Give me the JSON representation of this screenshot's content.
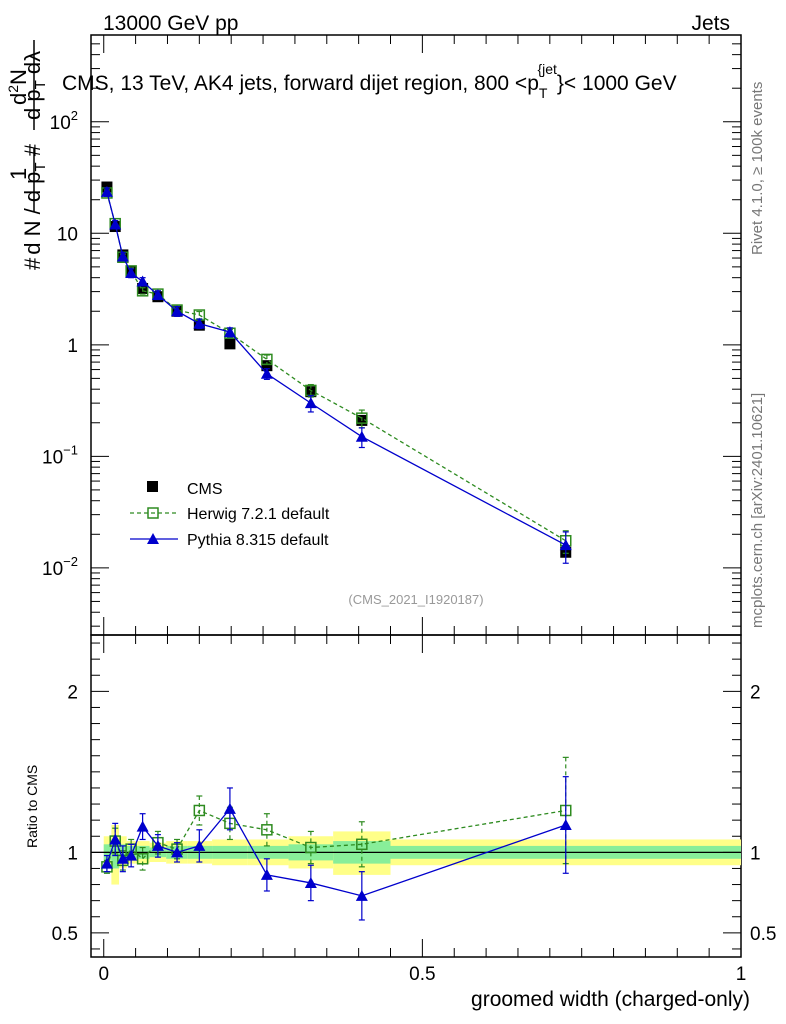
{
  "header": {
    "left": "13000 GeV pp",
    "right": "Jets",
    "title": "CMS, 13 TeV, AK4 jets, forward dijet region, 800 <p",
    "title_sup": "{jet",
    "title_sub": "T",
    "title_end": "}< 1000 GeV"
  },
  "side_labels": {
    "rivet": "Rivet 4.1.0, ≥ 100k events",
    "mcplots": "mcplots.cern.ch [arXiv:2401.10621]"
  },
  "watermark": "(CMS_2021_I1920187)",
  "ratio_ylabel": "Ratio to CMS",
  "xlabel": "groomed width (charged-only)",
  "colors": {
    "cms": "#000000",
    "herwig": "#2e8b20",
    "pythia": "#0000cc",
    "band_outer": "#ffff88",
    "band_inner": "#88ee99"
  },
  "chart_data": [
    {
      "type": "scatter",
      "panel": "main",
      "yscale": "log",
      "xlim": [
        -0.02,
        1.0
      ],
      "ylim": [
        0.0025,
        600
      ],
      "y_ticks": [
        {
          "value": 0.01,
          "base": "10",
          "exp": "−2"
        },
        {
          "value": 0.1,
          "base": "10",
          "exp": "−1"
        },
        {
          "value": 1,
          "base": "1",
          "exp": ""
        },
        {
          "value": 10,
          "base": "10",
          "exp": ""
        },
        {
          "value": 100,
          "base": "10",
          "exp": "2"
        }
      ],
      "x": [
        0.005,
        0.018,
        0.03,
        0.043,
        0.061,
        0.085,
        0.115,
        0.15,
        0.198,
        0.256,
        0.325,
        0.405,
        0.725
      ],
      "series": [
        {
          "name": "CMS",
          "values": [
            26,
            11.5,
            6.4,
            4.5,
            3.2,
            2.7,
            2.0,
            1.5,
            1.02,
            0.65,
            0.38,
            0.21,
            0.0138
          ]
        },
        {
          "name": "Herwig 7.2.1 default",
          "values": [
            23,
            12.2,
            6.1,
            4.6,
            3.05,
            2.85,
            2.05,
            1.85,
            1.27,
            0.74,
            0.39,
            0.22,
            0.0175
          ],
          "errors": [
            1.5,
            0.8,
            0.4,
            0.3,
            0.2,
            0.2,
            0.15,
            0.14,
            0.1,
            0.07,
            0.05,
            0.04,
            0.004
          ]
        },
        {
          "name": "Pythia 8.315 default",
          "values": [
            23.5,
            12.0,
            6.2,
            4.4,
            3.7,
            2.8,
            2.0,
            1.55,
            1.3,
            0.55,
            0.3,
            0.15,
            0.016
          ],
          "errors": [
            2.0,
            1.0,
            0.5,
            0.4,
            0.3,
            0.25,
            0.2,
            0.15,
            0.12,
            0.06,
            0.05,
            0.03,
            0.005
          ]
        }
      ],
      "legend": [
        "CMS",
        "Herwig 7.2.1 default",
        "Pythia 8.315 default"
      ]
    },
    {
      "type": "scatter",
      "panel": "ratio",
      "xlim": [
        -0.02,
        1.0
      ],
      "ylim": [
        0.35,
        2.35
      ],
      "x_ticks": [
        {
          "value": 0,
          "label": "0"
        },
        {
          "value": 0.5,
          "label": "0.5"
        },
        {
          "value": 1,
          "label": "1"
        }
      ],
      "y_ticks": [
        {
          "value": 0.5,
          "label": "0.5"
        },
        {
          "value": 1,
          "label": "1"
        },
        {
          "value": 2,
          "label": "2"
        }
      ],
      "bin_edges": [
        0,
        0.012,
        0.024,
        0.036,
        0.05,
        0.072,
        0.098,
        0.132,
        0.17,
        0.226,
        0.29,
        0.36,
        0.45,
        1.0
      ],
      "band_outer": [
        [
          0.9,
          1.1
        ],
        [
          0.8,
          1.17
        ],
        [
          0.9,
          1.1
        ],
        [
          0.93,
          1.07
        ],
        [
          0.93,
          1.07
        ],
        [
          0.94,
          1.06
        ],
        [
          0.93,
          1.07
        ],
        [
          0.93,
          1.07
        ],
        [
          0.92,
          1.08
        ],
        [
          0.92,
          1.08
        ],
        [
          0.9,
          1.1
        ],
        [
          0.86,
          1.13
        ],
        [
          0.92,
          1.08
        ]
      ],
      "band_inner": [
        [
          0.95,
          1.05
        ],
        [
          0.9,
          1.08
        ],
        [
          0.95,
          1.05
        ],
        [
          0.96,
          1.04
        ],
        [
          0.96,
          1.04
        ],
        [
          0.97,
          1.03
        ],
        [
          0.96,
          1.04
        ],
        [
          0.96,
          1.04
        ],
        [
          0.96,
          1.04
        ],
        [
          0.96,
          1.04
        ],
        [
          0.95,
          1.05
        ],
        [
          0.93,
          1.07
        ],
        [
          0.96,
          1.04
        ]
      ],
      "x": [
        0.005,
        0.018,
        0.03,
        0.043,
        0.061,
        0.085,
        0.115,
        0.15,
        0.198,
        0.256,
        0.325,
        0.405,
        0.725
      ],
      "series": [
        {
          "name": "Herwig 7.2.1 default",
          "values": [
            0.91,
            1.07,
            0.95,
            1.02,
            0.96,
            1.06,
            1.02,
            1.26,
            1.18,
            1.14,
            1.03,
            1.05,
            1.26
          ],
          "errors": [
            0.04,
            0.08,
            0.06,
            0.06,
            0.07,
            0.07,
            0.06,
            0.09,
            0.1,
            0.1,
            0.1,
            0.14,
            0.33
          ]
        },
        {
          "name": "Pythia 8.315 default",
          "values": [
            0.93,
            1.08,
            0.96,
            0.98,
            1.16,
            1.04,
            1.0,
            1.04,
            1.27,
            0.86,
            0.81,
            0.73,
            1.17
          ],
          "errors": [
            0.05,
            0.1,
            0.08,
            0.07,
            0.08,
            0.07,
            0.06,
            0.1,
            0.13,
            0.1,
            0.11,
            0.15,
            0.3
          ]
        }
      ]
    }
  ]
}
